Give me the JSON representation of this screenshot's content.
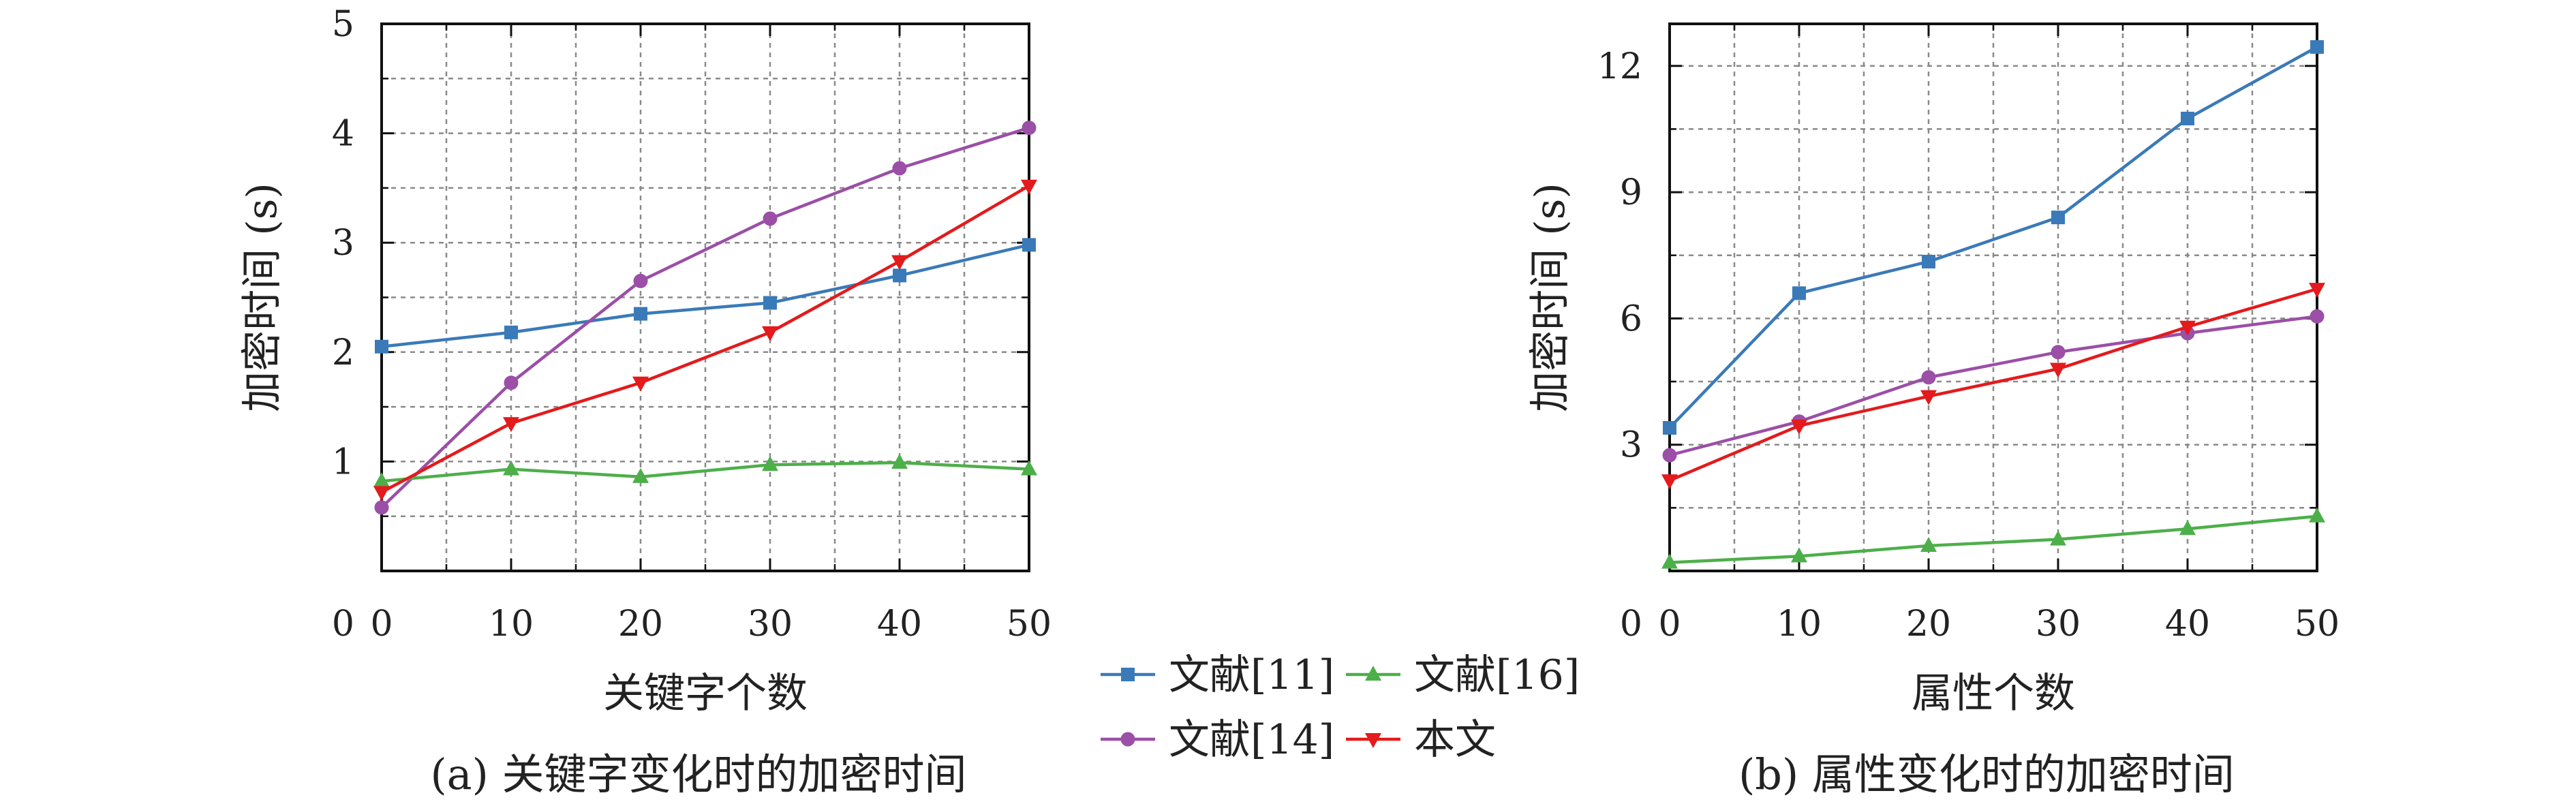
{
  "charts": [
    {
      "type": "line",
      "caption": "(a) 关键字变化时的加密时间",
      "xlabel": "关键字个数",
      "ylabel": "加密时间 (s)",
      "xlim": [
        0,
        50
      ],
      "ylim": [
        0,
        5
      ],
      "xticks": [
        0,
        10,
        20,
        30,
        40,
        50
      ],
      "yticks": [
        1,
        2,
        3,
        4,
        5
      ],
      "ytick_origin_label": "0",
      "x": [
        0,
        10,
        20,
        30,
        40,
        50
      ],
      "series": [
        {
          "name": "文献[11]",
          "values": [
            2.05,
            2.18,
            2.35,
            2.45,
            2.7,
            2.98
          ]
        },
        {
          "name": "文献[14]",
          "values": [
            0.58,
            1.72,
            2.65,
            3.22,
            3.68,
            4.05
          ]
        },
        {
          "name": "文献[16]",
          "values": [
            0.82,
            0.93,
            0.86,
            0.97,
            0.99,
            0.93
          ]
        },
        {
          "name": "本文",
          "values": [
            0.72,
            1.35,
            1.72,
            2.18,
            2.83,
            3.52
          ]
        }
      ]
    },
    {
      "type": "line",
      "caption": "(b) 属性变化时的加密时间",
      "xlabel": "属性个数",
      "ylabel": "加密时间 (s)",
      "xlim": [
        0,
        50
      ],
      "ylim": [
        0,
        13
      ],
      "xticks": [
        0,
        10,
        20,
        30,
        40,
        50
      ],
      "yticks": [
        3,
        6,
        9,
        12
      ],
      "ytick_origin_label": "0",
      "x": [
        0,
        10,
        20,
        30,
        40,
        50
      ],
      "series": [
        {
          "name": "文献[11]",
          "values": [
            3.4,
            6.6,
            7.35,
            8.4,
            10.75,
            12.45
          ]
        },
        {
          "name": "文献[14]",
          "values": [
            2.75,
            3.55,
            4.6,
            5.2,
            5.65,
            6.05
          ]
        },
        {
          "name": "文献[16]",
          "values": [
            0.2,
            0.35,
            0.6,
            0.75,
            1.0,
            1.3
          ]
        },
        {
          "name": "本文",
          "values": [
            2.15,
            3.45,
            4.15,
            4.8,
            5.8,
            6.7
          ]
        }
      ]
    }
  ],
  "legend": {
    "placement": "center-bottom",
    "items": [
      {
        "name": "文献[11]",
        "color": "#3a7ab8",
        "marker": "square"
      },
      {
        "name": "文献[16]",
        "color": "#4daf4a",
        "marker": "triangle-up"
      },
      {
        "name": "文献[14]",
        "color": "#9b4fa6",
        "marker": "circle"
      },
      {
        "name": "本文",
        "color": "#e41a1c",
        "marker": "triangle-down"
      }
    ]
  },
  "series_styles": {
    "文献[11]": {
      "color": "#3a7ab8",
      "marker": "square"
    },
    "文献[14]": {
      "color": "#9b4fa6",
      "marker": "circle"
    },
    "文献[16]": {
      "color": "#4daf4a",
      "marker": "triangle-up"
    },
    "本文": {
      "color": "#e41a1c",
      "marker": "triangle-down"
    }
  }
}
